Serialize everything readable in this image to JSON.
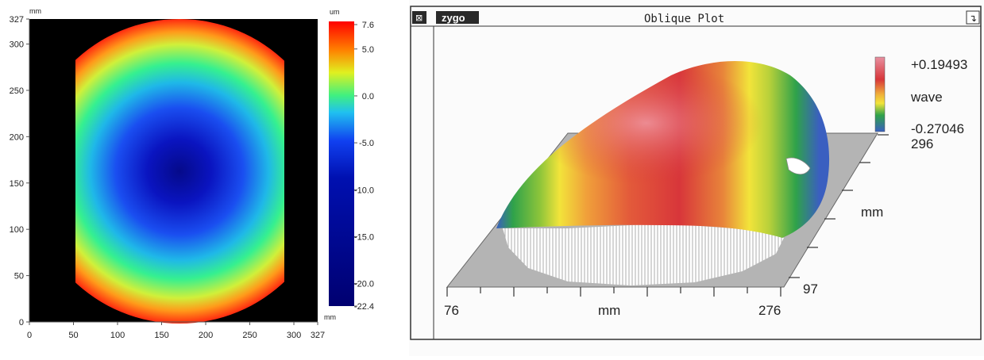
{
  "chart_data": [
    {
      "type": "heatmap",
      "x_unit": "mm",
      "y_unit": "mm",
      "x_ticks": [
        "0",
        "50",
        "100",
        "150",
        "200",
        "250",
        "300",
        "327"
      ],
      "y_ticks": [
        "0",
        "50",
        "100",
        "150",
        "200",
        "250",
        "300",
        "327"
      ],
      "xlim": [
        0,
        327
      ],
      "ylim": [
        0,
        327
      ],
      "x_axis_unit": "mm",
      "colorbar": {
        "unit": "um",
        "ticks": [
          "7.6",
          "5.0",
          "0.0",
          "-5.0",
          "-10.0",
          "-15.0",
          "-20.0",
          "-22.4"
        ],
        "range": [
          -22.4,
          7.6
        ]
      },
      "surface": {
        "shape": "circular aperture clipped at sides",
        "x_extent": [
          52,
          282
        ],
        "y_extent": [
          0,
          327
        ],
        "minimum_location": [
          165,
          160
        ],
        "minimum_value": -22.4,
        "maximum_value": 7.6
      },
      "colors": [
        "#000080",
        "#0000ff",
        "#00c0ff",
        "#00ff80",
        "#ffff00",
        "#ff0000"
      ]
    },
    {
      "type": "surface-3d",
      "window": {
        "logo": "zygo",
        "title": "Oblique Plot"
      },
      "legend": {
        "max": "+0.19493",
        "unit": "wave",
        "min": "-0.27046"
      },
      "y_axis": {
        "label": "mm",
        "max": "296",
        "min": "97"
      },
      "x_axis": {
        "label": "mm",
        "min": "76",
        "max": "276"
      },
      "colors": [
        "#3a5fc0",
        "#2fa24a",
        "#f2e43a",
        "#e8843a",
        "#d8363a",
        "#e88898"
      ]
    }
  ]
}
